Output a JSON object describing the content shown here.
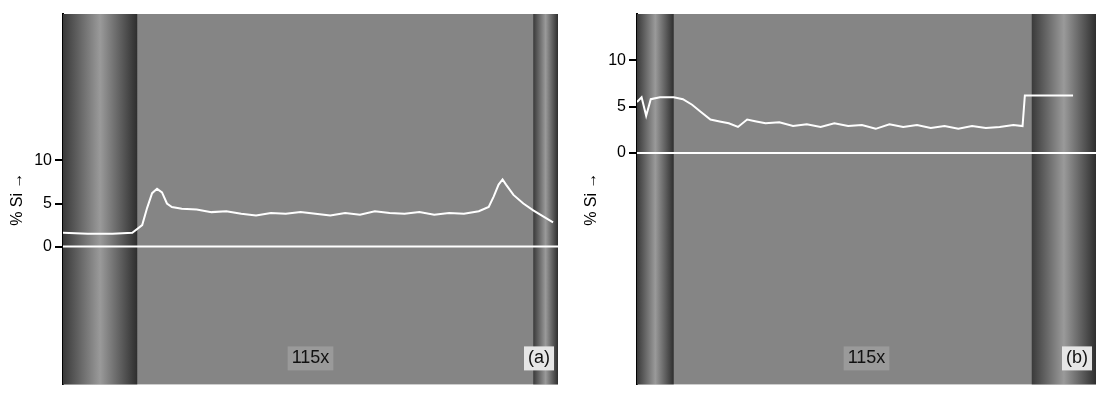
{
  "chart_data": [
    {
      "type": "line",
      "panel": "(a)",
      "annotation": "115x",
      "y_label": "% Si →",
      "color": "#ffffff",
      "grid": false,
      "tick_labels": "y",
      "xlim": [
        0,
        100
      ],
      "ylim": [
        -16,
        27
      ],
      "yticks": [
        0,
        5,
        10
      ],
      "x": [
        0,
        5,
        10,
        14,
        16,
        17,
        18,
        19,
        20,
        21,
        22,
        24,
        27,
        30,
        33,
        36,
        39,
        42,
        45,
        48,
        51,
        54,
        57,
        60,
        63,
        66,
        69,
        72,
        75,
        78,
        81,
        84,
        86,
        87,
        88,
        88.8,
        89.5,
        91,
        93,
        95,
        97,
        99
      ],
      "values": [
        1.6,
        1.5,
        1.5,
        1.6,
        2.5,
        4.5,
        6.2,
        6.7,
        6.3,
        5.0,
        4.6,
        4.4,
        4.3,
        4.0,
        4.1,
        3.8,
        3.6,
        3.9,
        3.8,
        4.0,
        3.8,
        3.6,
        3.9,
        3.7,
        4.1,
        3.9,
        3.8,
        4.0,
        3.7,
        3.9,
        3.8,
        4.1,
        4.6,
        5.8,
        7.2,
        7.8,
        7.2,
        6.0,
        5.0,
        4.2,
        3.5,
        2.8
      ]
    },
    {
      "type": "line",
      "panel": "(b)",
      "annotation": "115x",
      "y_label": "% Si →",
      "color": "#ffffff",
      "grid": false,
      "tick_labels": "y",
      "xlim": [
        0,
        100
      ],
      "ylim": [
        -25,
        15
      ],
      "yticks": [
        0,
        5,
        10
      ],
      "x": [
        0,
        1,
        2,
        3,
        5,
        8,
        10,
        12,
        14,
        16,
        18,
        20,
        22,
        24,
        26,
        28,
        31,
        34,
        37,
        40,
        43,
        46,
        49,
        52,
        55,
        58,
        61,
        64,
        67,
        70,
        73,
        76,
        79,
        82,
        84,
        84.5,
        88,
        92,
        95
      ],
      "values": [
        5.5,
        6.0,
        4.0,
        5.8,
        6.0,
        6.0,
        5.8,
        5.2,
        4.4,
        3.6,
        3.4,
        3.2,
        2.8,
        3.6,
        3.4,
        3.2,
        3.3,
        2.9,
        3.1,
        2.8,
        3.2,
        2.9,
        3.0,
        2.6,
        3.1,
        2.8,
        3.0,
        2.7,
        2.9,
        2.6,
        2.9,
        2.7,
        2.8,
        3.0,
        2.9,
        6.2,
        6.2,
        6.2,
        6.2
      ]
    }
  ]
}
